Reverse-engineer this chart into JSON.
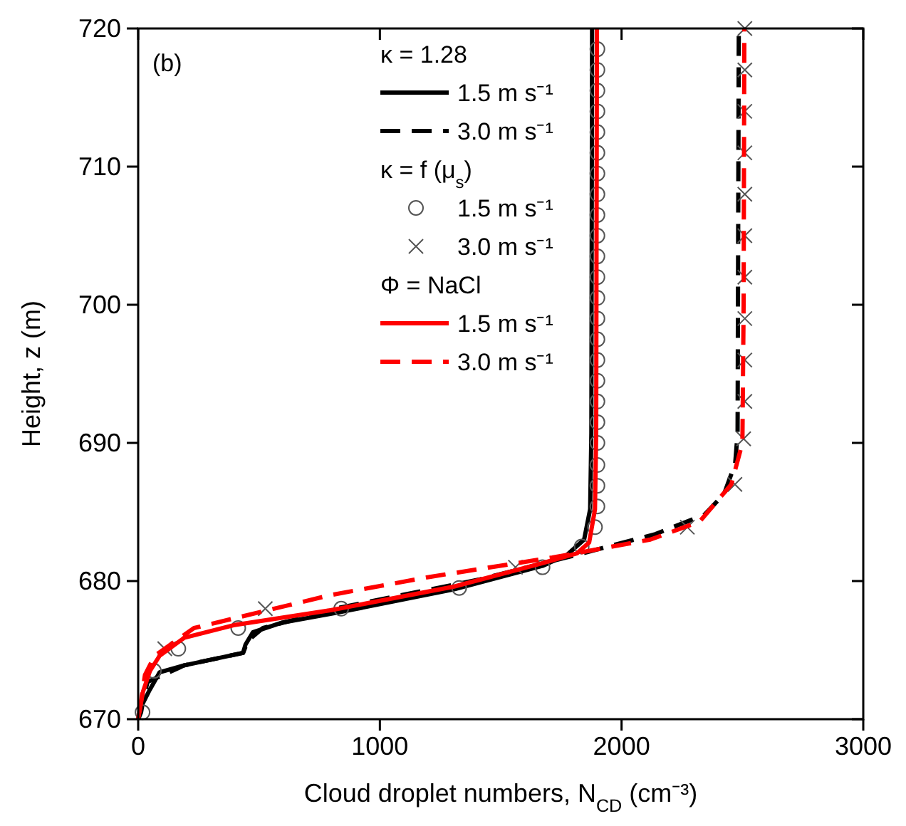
{
  "chart_data": {
    "type": "line",
    "xlabel": "Cloud droplet numbers, N$_{CD}$ (cm⁻³)",
    "ylabel": "Height, z (m)",
    "xlim": [
      0,
      3000
    ],
    "xticks": [
      0,
      1000,
      2000,
      3000
    ],
    "ylim": [
      670,
      720
    ],
    "yticks": [
      670,
      680,
      690,
      700,
      710,
      720
    ],
    "annotations": [
      "(b)",
      "κ = 1.28",
      "κ = f (μ$_{s}$)",
      "Φ = NaCl"
    ],
    "legend": "top left",
    "grid": false,
    "series": [
      {
        "name": "1.5 m s⁻¹",
        "color": "#000000",
        "line_style": "solid",
        "x": [
          0,
          12,
          18,
          47,
          89,
          191,
          434,
          444,
          475,
          597,
          820,
          1307,
          1673,
          1774,
          1845,
          1870,
          1875,
          1878
        ],
        "values": [
          670,
          670.5,
          671.1,
          672.1,
          673.4,
          673.9,
          674.8,
          675.4,
          676.3,
          677.0,
          677.7,
          679.4,
          681.1,
          681.9,
          683.0,
          685.2,
          690.7,
          720
        ]
      },
      {
        "name": "3.0 m s⁻¹",
        "color": "#000000",
        "line_style": "dashed",
        "x": [
          0,
          39,
          191,
          434,
          455,
          516,
          840,
          1409,
          1815,
          2140,
          2343,
          2424,
          2470,
          2480,
          2485
        ],
        "values": [
          670,
          672.7,
          673.9,
          674.8,
          675.7,
          676.6,
          678.1,
          680.1,
          681.9,
          683.4,
          684.8,
          686.3,
          688.5,
          690.7,
          720
        ]
      },
      {
        "name": "1.5 m s⁻¹",
        "type": "scatter",
        "marker": "circle",
        "color": "#555555",
        "x": [
          18,
          65,
          166,
          414,
          840,
          1328,
          1673,
          1835,
          1890,
          1900,
          1900,
          1900,
          1900,
          1900,
          1900,
          1900,
          1900,
          1900,
          1900,
          1900,
          1900,
          1900,
          1900,
          1900,
          1900,
          1900,
          1900,
          1900,
          1900,
          1900,
          1900,
          1900
        ],
        "values": [
          670.5,
          673.5,
          675.1,
          676.6,
          678.0,
          679.5,
          681.0,
          682.5,
          683.9,
          685.4,
          686.9,
          688.4,
          690.0,
          691.5,
          693.0,
          694.5,
          696.0,
          697.5,
          699.0,
          700.5,
          702.0,
          703.5,
          705.0,
          706.5,
          708.0,
          709.5,
          711.0,
          712.5,
          714.0,
          715.5,
          717.0,
          718.5
        ]
      },
      {
        "name": "3.0 m s⁻¹",
        "type": "scatter",
        "marker": "cross",
        "color": "#555555",
        "x": [
          110,
          526,
          1561,
          2272,
          2469,
          2505,
          2510,
          2510,
          2510,
          2510,
          2510,
          2510,
          2510,
          2510,
          2510,
          2510
        ],
        "values": [
          675.1,
          678.0,
          681.0,
          683.9,
          687.0,
          690.3,
          693.0,
          696.0,
          699.0,
          702.0,
          705.0,
          708.0,
          711.0,
          714.0,
          717.0,
          720.0
        ]
      },
      {
        "name": "1.5 m s⁻¹",
        "color": "#ff0000",
        "line_style": "solid",
        "x": [
          0,
          5,
          20,
          49,
          89,
          191,
          394,
          800,
          1307,
          1673,
          1815,
          1866,
          1890,
          1895,
          1898
        ],
        "values": [
          670,
          670.5,
          672,
          673.5,
          674.6,
          675.9,
          676.8,
          677.9,
          679.6,
          681.3,
          682.0,
          682.8,
          685.2,
          690.7,
          720
        ]
      },
      {
        "name": "3.0 m s⁻¹",
        "color": "#ff0000",
        "line_style": "dashed",
        "x": [
          5,
          28,
          69,
          231,
          800,
          1206,
          1713,
          2119,
          2323,
          2454,
          2500,
          2505,
          2508
        ],
        "values": [
          670.5,
          673.2,
          674.6,
          676.6,
          679.0,
          680.3,
          681.7,
          683.0,
          684.3,
          687.0,
          690.0,
          700,
          720
        ]
      }
    ]
  }
}
